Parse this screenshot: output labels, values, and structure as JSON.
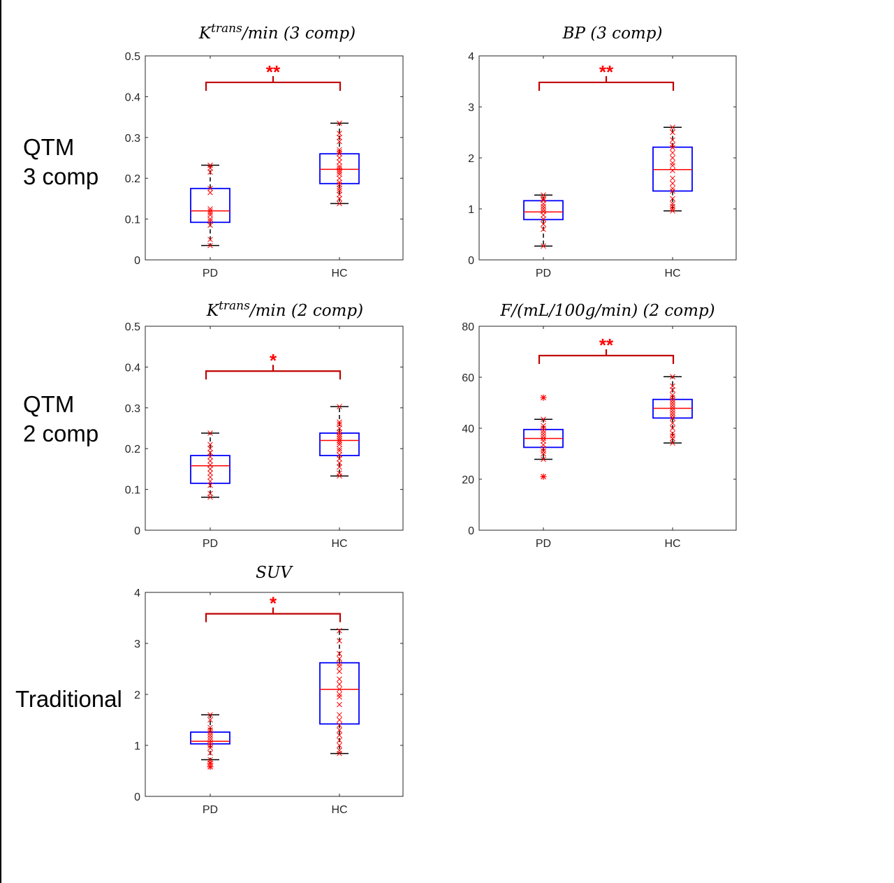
{
  "row_labels": [
    {
      "line1": "QTM",
      "line2": "3 comp"
    },
    {
      "line1": "QTM",
      "line2": "2 comp"
    },
    {
      "line1": "Traditional",
      "line2": ""
    }
  ],
  "colors": {
    "box": "#0000ff",
    "median": "#ff0000",
    "whisker": "#000000",
    "points": "#ff0000",
    "bracket": "#c00000",
    "axes": "#262626"
  },
  "chart_data": [
    {
      "type": "box",
      "title_main": "K",
      "title_sup": "trans",
      "title_rest": "/min (3 comp)",
      "categories": [
        "PD",
        "HC"
      ],
      "ylim": [
        0,
        0.5
      ],
      "yticks": [
        "0",
        "0.1",
        "0.2",
        "0.3",
        "0.4",
        "0.5"
      ],
      "ytick_values": [
        0,
        0.1,
        0.2,
        0.3,
        0.4,
        0.5
      ],
      "significance": "**",
      "bracket_y": 0.435,
      "boxes": [
        {
          "q1": 0.092,
          "median": 0.12,
          "q3": 0.175,
          "whisker_low": 0.035,
          "whisker_high": 0.232,
          "outliers": [],
          "points": [
            0.035,
            0.05,
            0.085,
            0.095,
            0.1,
            0.11,
            0.115,
            0.12,
            0.125,
            0.165,
            0.175,
            0.215,
            0.225,
            0.232
          ]
        },
        {
          "q1": 0.187,
          "median": 0.222,
          "q3": 0.26,
          "whisker_low": 0.138,
          "whisker_high": 0.335,
          "outliers": [],
          "points": [
            0.138,
            0.15,
            0.16,
            0.17,
            0.175,
            0.185,
            0.19,
            0.2,
            0.21,
            0.215,
            0.22,
            0.225,
            0.23,
            0.24,
            0.25,
            0.26,
            0.265,
            0.27,
            0.29,
            0.3,
            0.31,
            0.335
          ]
        }
      ]
    },
    {
      "type": "box",
      "title_main": "BP",
      "title_sup": "",
      "title_rest": " (3 comp)",
      "categories": [
        "PD",
        "HC"
      ],
      "ylim": [
        0,
        4
      ],
      "yticks": [
        "0",
        "1",
        "2",
        "3",
        "4"
      ],
      "ytick_values": [
        0,
        1,
        2,
        3,
        4
      ],
      "significance": "**",
      "bracket_y": 3.48,
      "boxes": [
        {
          "q1": 0.79,
          "median": 0.94,
          "q3": 1.16,
          "whisker_low": 0.27,
          "whisker_high": 1.27,
          "outliers": [],
          "points": [
            0.27,
            0.6,
            0.7,
            0.8,
            0.88,
            0.95,
            1.0,
            1.05,
            1.1,
            1.17,
            1.2,
            1.27
          ]
        },
        {
          "q1": 1.35,
          "median": 1.77,
          "q3": 2.21,
          "whisker_low": 0.96,
          "whisker_high": 2.6,
          "outliers": [],
          "points": [
            0.96,
            1.0,
            1.05,
            1.1,
            1.2,
            1.35,
            1.4,
            1.5,
            1.6,
            1.75,
            1.85,
            1.9,
            2.0,
            2.1,
            2.2,
            2.25,
            2.35,
            2.5,
            2.6
          ]
        }
      ]
    },
    {
      "type": "box",
      "title_main": "K",
      "title_sup": "trans",
      "title_rest": "/min (2 comp)",
      "categories": [
        "PD",
        "HC"
      ],
      "ylim": [
        0,
        0.5
      ],
      "yticks": [
        "0",
        "0.1",
        "0.2",
        "0.3",
        "0.4",
        "0.5"
      ],
      "ytick_values": [
        0,
        0.1,
        0.2,
        0.3,
        0.4,
        0.5
      ],
      "significance": "*",
      "bracket_y": 0.39,
      "boxes": [
        {
          "q1": 0.115,
          "median": 0.158,
          "q3": 0.183,
          "whisker_low": 0.081,
          "whisker_high": 0.238,
          "outliers": [],
          "points": [
            0.081,
            0.09,
            0.11,
            0.12,
            0.13,
            0.14,
            0.15,
            0.16,
            0.17,
            0.18,
            0.19,
            0.2,
            0.21,
            0.238
          ]
        },
        {
          "q1": 0.183,
          "median": 0.22,
          "q3": 0.238,
          "whisker_low": 0.133,
          "whisker_high": 0.303,
          "outliers": [],
          "points": [
            0.133,
            0.14,
            0.155,
            0.165,
            0.175,
            0.185,
            0.195,
            0.2,
            0.21,
            0.215,
            0.22,
            0.225,
            0.23,
            0.235,
            0.24,
            0.25,
            0.26,
            0.265,
            0.303
          ]
        }
      ]
    },
    {
      "type": "box",
      "title_main": "F",
      "title_sup": "",
      "title_rest": "/(mL/100g/min) (2 comp)",
      "categories": [
        "PD",
        "HC"
      ],
      "ylim": [
        0,
        80
      ],
      "yticks": [
        "0",
        "20",
        "40",
        "60",
        "80"
      ],
      "ytick_values": [
        0,
        20,
        40,
        60,
        80
      ],
      "significance": "**",
      "bracket_y": 68.5,
      "boxes": [
        {
          "q1": 32.5,
          "median": 36,
          "q3": 39.5,
          "whisker_low": 27.8,
          "whisker_high": 43.5,
          "outliers": [
            21,
            52
          ],
          "points": [
            27.8,
            30,
            31,
            32,
            33.5,
            35,
            36,
            37,
            38,
            39,
            40,
            41,
            43.5
          ]
        },
        {
          "q1": 44,
          "median": 47.8,
          "q3": 51.3,
          "whisker_low": 34.2,
          "whisker_high": 60.2,
          "outliers": [],
          "points": [
            34.2,
            36,
            37,
            38,
            40,
            42,
            44,
            45,
            46,
            47,
            48,
            49,
            50,
            51,
            52,
            53,
            55,
            56.5,
            60.2
          ]
        }
      ]
    },
    {
      "type": "box",
      "title_main": "SUV",
      "title_sup": "",
      "title_rest": "",
      "categories": [
        "PD",
        "HC"
      ],
      "ylim": [
        0,
        4
      ],
      "yticks": [
        "0",
        "1",
        "2",
        "3",
        "4"
      ],
      "ytick_values": [
        0,
        1,
        2,
        3,
        4
      ],
      "significance": "*",
      "bracket_y": 3.58,
      "boxes": [
        {
          "q1": 1.03,
          "median": 1.08,
          "q3": 1.26,
          "whisker_low": 0.72,
          "whisker_high": 1.6,
          "outliers": [
            0.58,
            0.65
          ],
          "points": [
            0.72,
            0.85,
            0.95,
            1.0,
            1.05,
            1.1,
            1.15,
            1.2,
            1.25,
            1.3,
            1.35,
            1.5,
            1.6
          ]
        },
        {
          "q1": 1.42,
          "median": 2.1,
          "q3": 2.62,
          "whisker_low": 0.84,
          "whisker_high": 3.27,
          "outliers": [],
          "points": [
            0.84,
            0.9,
            1.0,
            1.1,
            1.2,
            1.3,
            1.4,
            1.5,
            1.6,
            1.8,
            1.95,
            2.0,
            2.1,
            2.2,
            2.3,
            2.45,
            2.55,
            2.6,
            2.7,
            2.8,
            3.05,
            3.25
          ]
        }
      ]
    }
  ]
}
